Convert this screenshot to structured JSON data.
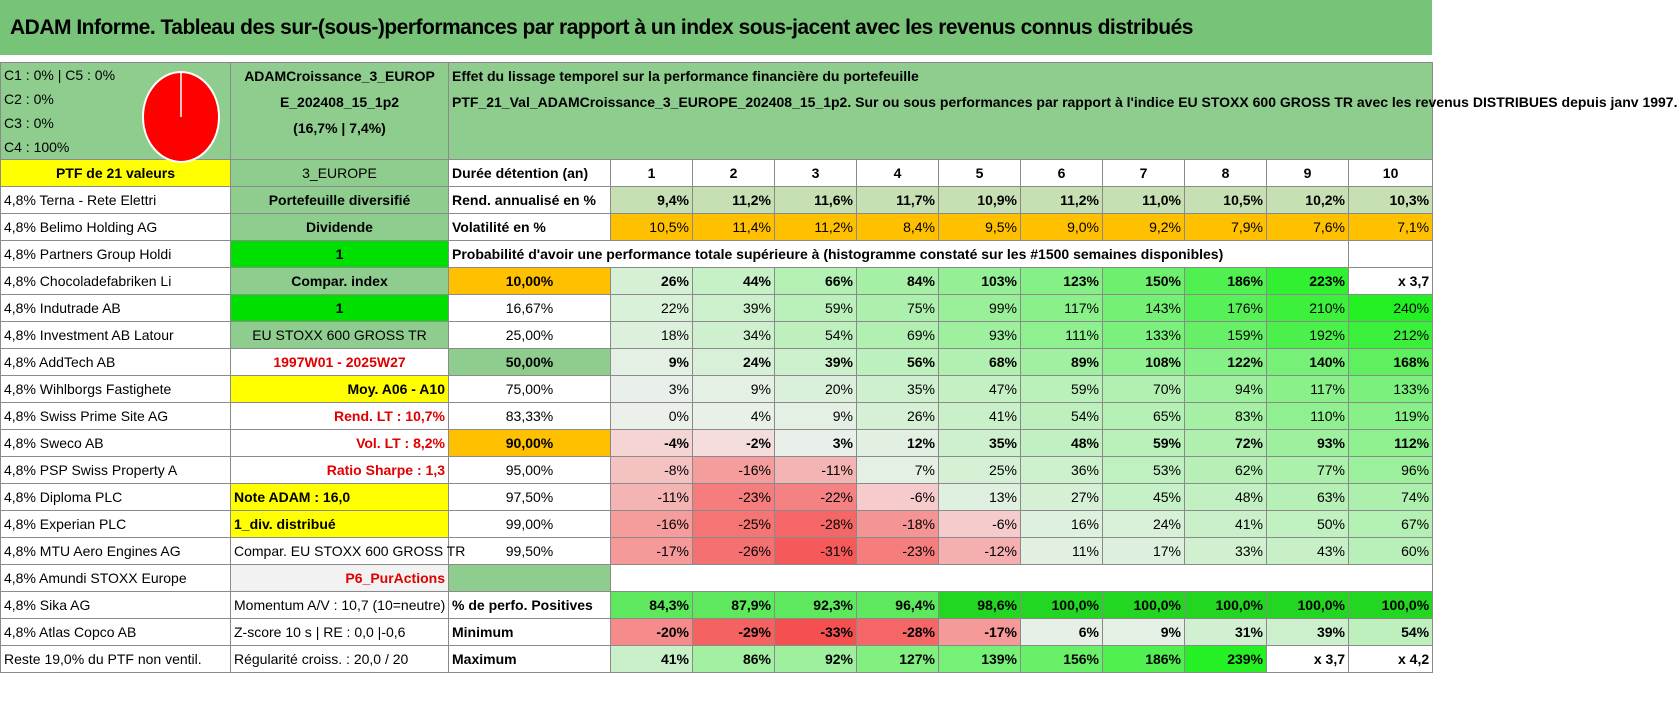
{
  "title": "ADAM Informe. Tableau des sur-(sous-)performances par rapport à un index sous-jacent avec les revenus connus distribués",
  "composition": {
    "lines": [
      "C1 : 0% | C5 : 0%",
      "C2 : 0%",
      "C3 : 0%",
      "C4 : 100%"
    ],
    "pie_color": "#ff0000"
  },
  "portfolio": {
    "title_line1": "ADAMCroissance_3_EUROP",
    "title_line2": "E_202408_15_1p2",
    "title_line3": "(16,7% | 7,4%)",
    "description_line1": "Effet du lissage temporel sur la performance financière du portefeuille",
    "description_line2": "PTF_21_Val_ADAMCroissance_3_EUROPE_202408_15_1p2. Sur ou sous performances par rapport à l'indice EU STOXX 600 GROSS TR avec les revenus DISTRIBUES depuis janv 1997.",
    "ptf_label": "PTF de 21 valeurs",
    "region": "3_EUROPE"
  },
  "holdings": [
    "4,8% Terna - Rete Elettri",
    "4,8% Belimo Holding AG",
    "4,8% Partners Group Holdi",
    "4,8% Chocoladefabriken Li",
    "4,8% Indutrade AB",
    "4,8% Investment AB Latour",
    "4,8% AddTech AB",
    "4,8% Wihlborgs Fastighete",
    "4,8% Swiss Prime Site AG",
    "4,8% Sweco AB",
    "4,8% PSP Swiss Property A",
    "4,8% Diploma PLC",
    "4,8% Experian PLC",
    "4,8% MTU Aero Engines AG",
    "4,8% Amundi STOXX Europe",
    "4,8% Sika AG",
    "4,8% Atlas Copco AB",
    "Reste 19,0% du PTF non ventil."
  ],
  "info_column": [
    "Portefeuille diversifié",
    "Dividende",
    "1",
    "Compar. index",
    "1",
    "EU STOXX 600 GROSS TR",
    "1997W01 - 2025W27",
    "Moy. A06 - A10",
    "Rend. LT : 10,7%",
    "Vol. LT : 8,2%",
    "Ratio Sharpe : 1,3",
    "Note ADAM : 16,0",
    "1_div. distribué",
    "Compar. EU STOXX 600 GROSS TR",
    "P6_PurActions",
    "Momentum A/V : 10,7 (10=neutre)",
    "Z-score 10 s | RE : 0,0 |-0,6",
    "Régularité croiss. : 20,0 / 20"
  ],
  "duration": {
    "label": "Durée détention (an)",
    "years": [
      "1",
      "2",
      "3",
      "4",
      "5",
      "6",
      "7",
      "8",
      "9",
      "10"
    ]
  },
  "annual_return": {
    "label": "Rend. annualisé en %",
    "values": [
      "9,4%",
      "11,2%",
      "11,6%",
      "11,7%",
      "10,9%",
      "11,2%",
      "11,0%",
      "10,5%",
      "10,2%",
      "10,3%"
    ]
  },
  "volatility": {
    "label": "Volatilité en %",
    "values": [
      "10,5%",
      "11,4%",
      "11,2%",
      "8,4%",
      "9,5%",
      "9,0%",
      "9,2%",
      "7,9%",
      "7,6%",
      "7,1%"
    ]
  },
  "probability_title": "Probabilité d'avoir une performance totale supérieure à (histogramme constaté sur les #1500 semaines disponibles)",
  "probability_rows": [
    {
      "p": "10,00%",
      "v": [
        "26%",
        "44%",
        "66%",
        "84%",
        "103%",
        "123%",
        "150%",
        "186%",
        "223%",
        "x 3,7"
      ]
    },
    {
      "p": "16,67%",
      "v": [
        "22%",
        "39%",
        "59%",
        "75%",
        "99%",
        "117%",
        "143%",
        "176%",
        "210%",
        "240%"
      ]
    },
    {
      "p": "25,00%",
      "v": [
        "18%",
        "34%",
        "54%",
        "69%",
        "93%",
        "111%",
        "133%",
        "159%",
        "192%",
        "212%"
      ]
    },
    {
      "p": "50,00%",
      "v": [
        "9%",
        "24%",
        "39%",
        "56%",
        "68%",
        "89%",
        "108%",
        "122%",
        "140%",
        "168%"
      ]
    },
    {
      "p": "75,00%",
      "v": [
        "3%",
        "9%",
        "20%",
        "35%",
        "47%",
        "59%",
        "70%",
        "94%",
        "117%",
        "133%"
      ]
    },
    {
      "p": "83,33%",
      "v": [
        "0%",
        "4%",
        "9%",
        "26%",
        "41%",
        "54%",
        "65%",
        "83%",
        "110%",
        "119%"
      ]
    },
    {
      "p": "90,00%",
      "v": [
        "-4%",
        "-2%",
        "3%",
        "12%",
        "35%",
        "48%",
        "59%",
        "72%",
        "93%",
        "112%"
      ]
    },
    {
      "p": "95,00%",
      "v": [
        "-8%",
        "-16%",
        "-11%",
        "7%",
        "25%",
        "36%",
        "53%",
        "62%",
        "77%",
        "96%"
      ]
    },
    {
      "p": "97,50%",
      "v": [
        "-11%",
        "-23%",
        "-22%",
        "-6%",
        "13%",
        "27%",
        "45%",
        "48%",
        "63%",
        "74%"
      ]
    },
    {
      "p": "99,00%",
      "v": [
        "-16%",
        "-25%",
        "-28%",
        "-18%",
        "-6%",
        "16%",
        "24%",
        "41%",
        "50%",
        "67%"
      ]
    },
    {
      "p": "99,50%",
      "v": [
        "-17%",
        "-26%",
        "-31%",
        "-23%",
        "-12%",
        "11%",
        "17%",
        "33%",
        "43%",
        "60%"
      ]
    }
  ],
  "positive": {
    "label": "% de perfo. Positives",
    "values": [
      "84,3%",
      "87,9%",
      "92,3%",
      "96,4%",
      "98,6%",
      "100,0%",
      "100,0%",
      "100,0%",
      "100,0%",
      "100,0%"
    ]
  },
  "minimum": {
    "label": "Minimum",
    "values": [
      "-20%",
      "-29%",
      "-33%",
      "-28%",
      "-17%",
      "6%",
      "9%",
      "31%",
      "39%",
      "54%"
    ]
  },
  "maximum": {
    "label": "Maximum",
    "values": [
      "41%",
      "86%",
      "92%",
      "127%",
      "139%",
      "156%",
      "186%",
      "239%",
      "x 3,7",
      "x 4,2"
    ]
  },
  "colors": {
    "header_green": "#77c377",
    "mid_green": "#8fcd8f",
    "bright_green": "#00e000",
    "yellow": "#ffff00",
    "orange": "#ffc000",
    "negative_red": "#f08080",
    "positive_green": "#33dd33",
    "note_red": "#e00000"
  }
}
